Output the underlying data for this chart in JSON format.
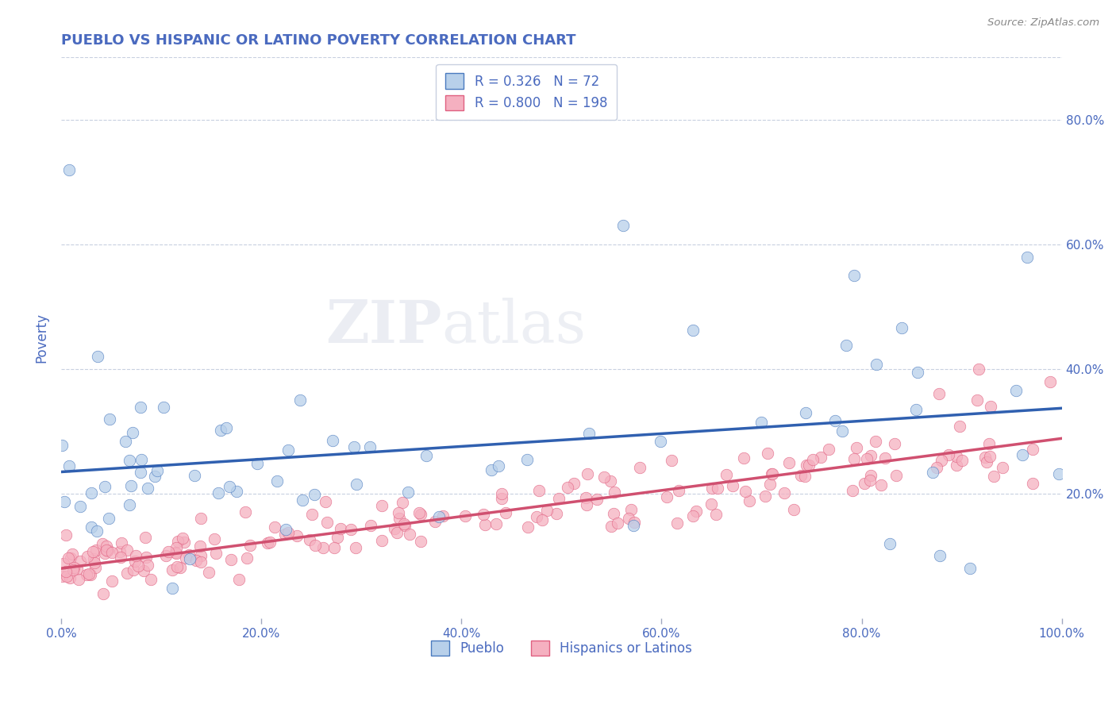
{
  "title": "PUEBLO VS HISPANIC OR LATINO POVERTY CORRELATION CHART",
  "source": "Source: ZipAtlas.com",
  "ylabel": "Poverty",
  "xlim": [
    0,
    1
  ],
  "ylim": [
    0,
    0.9
  ],
  "xtick_positions": [
    0.0,
    0.2,
    0.4,
    0.6,
    0.8,
    1.0
  ],
  "xticklabels": [
    "0.0%",
    "20.0%",
    "40.0%",
    "60.0%",
    "80.0%",
    "100.0%"
  ],
  "ytick_positions": [
    0.2,
    0.4,
    0.6,
    0.8
  ],
  "yticklabels_right": [
    "20.0%",
    "40.0%",
    "60.0%",
    "80.0%"
  ],
  "legend_labels": [
    "Pueblo",
    "Hispanics or Latinos"
  ],
  "pueblo_color": "#b8d0ea",
  "hispanic_color": "#f5b0c0",
  "pueblo_edge_color": "#4a7abf",
  "hispanic_edge_color": "#e06080",
  "pueblo_line_color": "#3060b0",
  "hispanic_line_color": "#d05070",
  "pueblo_r": 0.326,
  "pueblo_n": 72,
  "hispanic_r": 0.8,
  "hispanic_n": 198,
  "watermark_zip": "ZIP",
  "watermark_atlas": "atlas",
  "background_color": "#ffffff",
  "grid_color": "#c8d0e0",
  "tick_color": "#4a6abf",
  "title_color": "#4a6abf",
  "source_color": "#888888"
}
